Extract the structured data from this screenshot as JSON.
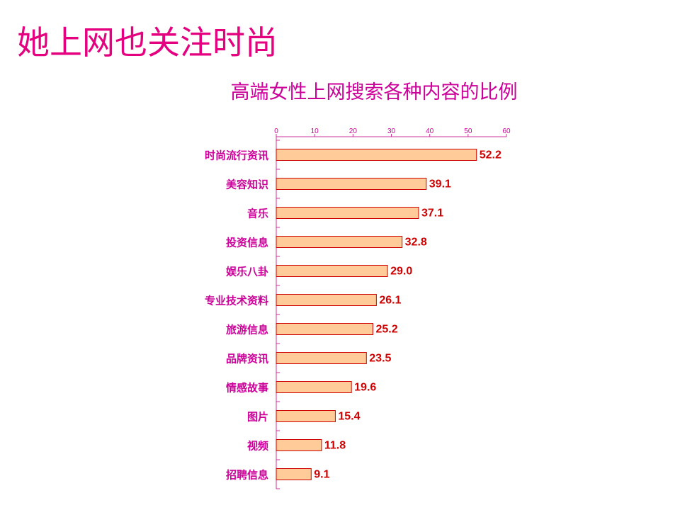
{
  "slide": {
    "title": "她上网也关注时尚"
  },
  "colors": {
    "slide_title": "#E4007F",
    "chart_title": "#CC0099",
    "category_label": "#CC0099",
    "tick_label": "#CC0099",
    "axis": "#CC3399",
    "bar_fill": "#FFCC99",
    "bar_stroke": "#CC0000",
    "value_label": "#D00000"
  },
  "chart_data": {
    "type": "bar",
    "orientation": "horizontal",
    "title": "高端女性上网搜索各种内容的比例",
    "categories": [
      "时尚流行资讯",
      "美容知识",
      "音乐",
      "投资信息",
      "娱乐八卦",
      "专业技术资料",
      "旅游信息",
      "品牌资讯",
      "情感故事",
      "图片",
      "视频",
      "招聘信息"
    ],
    "values": [
      52.2,
      39.1,
      37.1,
      32.8,
      29.0,
      26.1,
      25.2,
      23.5,
      19.6,
      15.4,
      11.8,
      9.1
    ],
    "data_labels": [
      "52.2",
      "39.1",
      "37.1",
      "32.8",
      "29.0",
      "26.1",
      "25.2",
      "23.5",
      "19.6",
      "15.4",
      "11.8",
      "9.1"
    ],
    "xlim": [
      0,
      60
    ],
    "xticks": [
      0,
      10,
      20,
      30,
      40,
      50,
      60
    ],
    "x_axis_position": "top",
    "grid": false,
    "legend": "none"
  }
}
